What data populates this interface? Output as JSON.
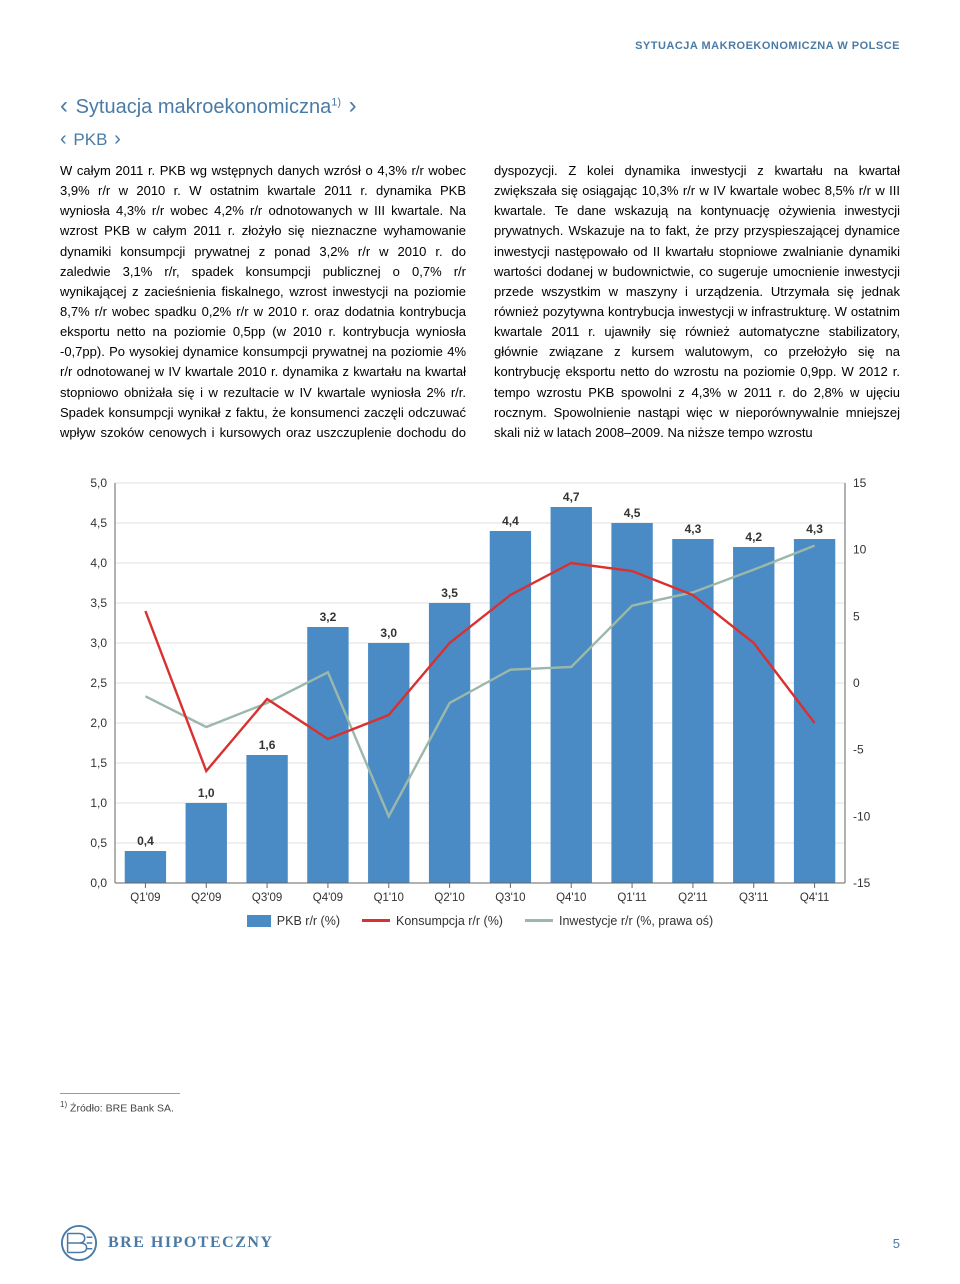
{
  "header": {
    "label": "SYTUACJA MAKROEKONOMICZNA W POLSCE"
  },
  "title": "Sytuacja makroekonomiczna",
  "title_sup": "1)",
  "subtitle": "PKB",
  "body_col1": "W całym 2011 r. PKB wg wstępnych danych wzrósł o 4,3% r/r wobec 3,9% r/r w 2010 r. W ostatnim kwartale 2011 r. dynamika PKB wyniosła 4,3% r/r wobec 4,2% r/r odnotowanych w III kwartale. Na wzrost PKB w całym 2011 r. złożyło się nieznaczne wyhamowanie dynamiki konsumpcji prywatnej z ponad 3,2% r/r w 2010 r. do zaledwie 3,1% r/r, spadek konsumpcji publicznej o 0,7% r/r wynikającej z zacieśnienia fiskalnego, wzrost inwestycji na poziomie 8,7% r/r wobec spadku 0,2% r/r w 2010 r. oraz dodatnia kontrybucja eksportu netto na poziomie 0,5pp (w 2010 r. kontrybucja wyniosła -0,7pp). Po wysokiej dynamice konsumpcji prywatnej na poziomie 4% r/r odnotowanej w IV kwartale 2010 r. dynamika z kwartału na kwartał stopniowo obniżała się i w rezultacie w IV kwartale wyniosła 2% r/r. Spadek konsumpcji wynikał z faktu, że konsumenci zaczęli odczuwać wpływ szoków cenowych i kursowych oraz uszczuplenie dochodu do dyspozycji. Z kolei dynamika inwestycji z kwartału na kwartał zwiększała się osiągając 10,3% r/r w IV kwartale wobec 8,5% r/r w III kwartale. Te dane wskazują na kontynuację ożywienia inwestycji prywatnych. Wskazuje na to fakt, że przy przyspieszającej dynamice inwestycji następowało od II kwartału stopniowe zwalnianie dynamiki wartości dodanej w budownictwie, co sugeruje umocnienie inwestycji przede wszystkim w maszyny i urządzenia. Utrzymała się jednak również pozytywna kontrybucja inwestycji w infrastrukturę. W ostatnim kwartale 2011 r. ujawniły się również automatyczne stabilizatory, głównie związane z kursem walutowym, co przełożyło się na kontrybucję eksportu netto do wzrostu na poziomie 0,9pp. W 2012 r. tempo wzrostu PKB spowolni z 4,3% w 2011 r. do 2,8% w ujęciu rocznym. Spowolnienie nastąpi więc w nieporównywalnie mniejszej skali niż w latach 2008–2009. Na niższe tempo wzrostu",
  "chart": {
    "type": "bar+line",
    "categories": [
      "Q1'09",
      "Q2'09",
      "Q3'09",
      "Q4'09",
      "Q1'10",
      "Q2'10",
      "Q3'10",
      "Q4'10",
      "Q1'11",
      "Q2'11",
      "Q3'11",
      "Q4'11"
    ],
    "bars": [
      0.4,
      1.0,
      1.6,
      3.2,
      3.0,
      3.5,
      4.4,
      4.7,
      4.5,
      4.3,
      4.2,
      4.3
    ],
    "line_red": [
      3.4,
      1.4,
      2.3,
      1.8,
      2.1,
      3.0,
      3.6,
      4.0,
      3.9,
      3.6,
      3.0,
      2.0
    ],
    "line_green": [
      -1.0,
      -3.3,
      -1.5,
      0.8,
      -10.0,
      -1.5,
      1.0,
      1.2,
      5.8,
      6.8,
      8.5,
      10.3
    ],
    "left_axis": {
      "min": 0.0,
      "max": 5.0,
      "step": 0.5
    },
    "right_axis": {
      "min": -15,
      "max": 15,
      "step": 5
    },
    "bar_color": "#4a8bc5",
    "line_red_color": "#d93030",
    "line_green_color": "#9bb8aa",
    "grid_color": "#bfbfbf",
    "background": "#ffffff",
    "legend": {
      "bar": "PKB r/r (%)",
      "red": "Konsumpcja r/r (%)",
      "green": "Inwestycje r/r (%, prawa oś)"
    }
  },
  "footnote": {
    "marker": "1)",
    "text": "Źródło: BRE Bank SA."
  },
  "footer": {
    "brand": "BRE HIPOTECZNY",
    "page": "5"
  }
}
